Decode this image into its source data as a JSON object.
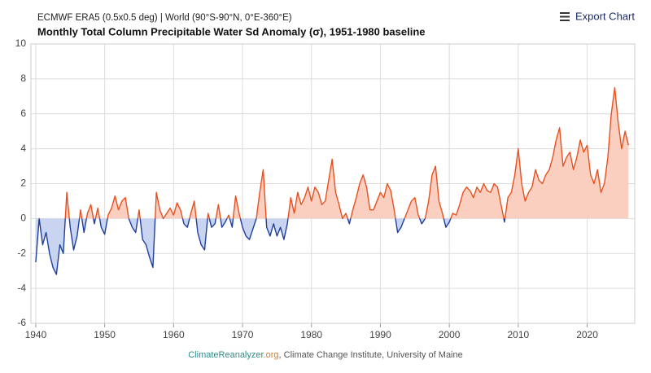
{
  "chart_data": {
    "type": "line",
    "subtitle": "ECMWF ERA5 (0.5x0.5 deg) | World (90°S-90°N, 0°E-360°E)",
    "title": "Monthly Total Column Precipitable Water Sd Anomaly (σ), 1951-1980 baseline",
    "export_button": "Export Chart",
    "credit": {
      "site": "ClimateReanalyzer",
      "tld": ".org",
      "text": ", Climate Change Institute, University of Maine"
    },
    "xlim": [
      1939.3,
      2026.9
    ],
    "ylim": [
      -6,
      10
    ],
    "xticks": [
      1940,
      1950,
      1960,
      1970,
      1980,
      1990,
      2000,
      2010,
      2020
    ],
    "yticks": [
      -6,
      -4,
      -2,
      0,
      2,
      4,
      6,
      8,
      10
    ],
    "grid": true,
    "positive_color": "#e8501f",
    "positive_fill": "#fbcfc0",
    "negative_color": "#1f3f9f",
    "negative_fill": "#c9d4f0",
    "x": [
      1940,
      1940.5,
      1941,
      1941.5,
      1942,
      1942.5,
      1943,
      1943.5,
      1944,
      1944.5,
      1945,
      1945.5,
      1946,
      1946.5,
      1947,
      1947.5,
      1948,
      1948.5,
      1949,
      1949.5,
      1950,
      1950.5,
      1951,
      1951.5,
      1952,
      1952.5,
      1953,
      1953.5,
      1954,
      1954.5,
      1955,
      1955.5,
      1956,
      1956.5,
      1957,
      1957.5,
      1958,
      1958.5,
      1959,
      1959.5,
      1960,
      1960.5,
      1961,
      1961.5,
      1962,
      1962.5,
      1963,
      1963.5,
      1964,
      1964.5,
      1965,
      1965.5,
      1966,
      1966.5,
      1967,
      1967.5,
      1968,
      1968.5,
      1969,
      1969.5,
      1970,
      1970.5,
      1971,
      1971.5,
      1972,
      1972.5,
      1973,
      1973.5,
      1974,
      1974.5,
      1975,
      1975.5,
      1976,
      1976.5,
      1977,
      1977.5,
      1978,
      1978.5,
      1979,
      1979.5,
      1980,
      1980.5,
      1981,
      1981.5,
      1982,
      1982.5,
      1983,
      1983.5,
      1984,
      1984.5,
      1985,
      1985.5,
      1986,
      1986.5,
      1987,
      1987.5,
      1988,
      1988.5,
      1989,
      1989.5,
      1990,
      1990.5,
      1991,
      1991.5,
      1992,
      1992.5,
      1993,
      1993.5,
      1994,
      1994.5,
      1995,
      1995.5,
      1996,
      1996.5,
      1997,
      1997.5,
      1998,
      1998.5,
      1999,
      1999.5,
      2000,
      2000.5,
      2001,
      2001.5,
      2002,
      2002.5,
      2003,
      2003.5,
      2004,
      2004.5,
      2005,
      2005.5,
      2006,
      2006.5,
      2007,
      2007.5,
      2008,
      2008.5,
      2009,
      2009.5,
      2010,
      2010.5,
      2011,
      2011.5,
      2012,
      2012.5,
      2013,
      2013.5,
      2014,
      2014.5,
      2015,
      2015.5,
      2016,
      2016.5,
      2017,
      2017.5,
      2018,
      2018.5,
      2019,
      2019.5,
      2020,
      2020.5,
      2021,
      2021.5,
      2022,
      2022.5,
      2023,
      2023.5,
      2024,
      2024.5,
      2025,
      2025.5,
      2026
    ],
    "values": [
      -2.5,
      0.0,
      -1.5,
      -0.8,
      -2.0,
      -2.8,
      -3.2,
      -1.5,
      -2.0,
      1.5,
      -0.5,
      -1.8,
      -1.0,
      0.5,
      -0.8,
      0.3,
      0.8,
      -0.3,
      0.6,
      -0.5,
      -0.9,
      0.2,
      0.6,
      1.3,
      0.5,
      1.0,
      1.2,
      0.0,
      -0.5,
      -0.8,
      0.5,
      -1.2,
      -1.5,
      -2.2,
      -2.8,
      1.5,
      0.5,
      0.0,
      0.3,
      0.6,
      0.2,
      0.9,
      0.5,
      -0.3,
      -0.5,
      0.3,
      1.0,
      -0.8,
      -1.5,
      -1.8,
      0.3,
      -0.5,
      -0.3,
      0.8,
      -0.5,
      -0.2,
      0.2,
      -0.5,
      1.3,
      0.3,
      -0.5,
      -1.0,
      -1.2,
      -0.6,
      0.0,
      1.5,
      2.8,
      -0.5,
      -1.0,
      -0.3,
      -1.0,
      -0.5,
      -1.2,
      -0.3,
      1.2,
      0.3,
      1.5,
      0.8,
      1.2,
      1.8,
      1.0,
      1.8,
      1.5,
      0.8,
      1.0,
      2.2,
      3.4,
      1.5,
      0.8,
      0.0,
      0.3,
      -0.3,
      0.5,
      1.2,
      2.0,
      2.5,
      1.8,
      0.5,
      0.5,
      1.0,
      1.5,
      1.2,
      2.0,
      1.6,
      0.5,
      -0.8,
      -0.5,
      0.0,
      0.5,
      1.0,
      1.2,
      0.2,
      -0.3,
      0.0,
      1.0,
      2.5,
      3.0,
      1.0,
      0.3,
      -0.5,
      -0.2,
      0.3,
      0.2,
      0.8,
      1.5,
      1.8,
      1.6,
      1.2,
      1.8,
      1.5,
      2.0,
      1.6,
      1.5,
      2.0,
      1.8,
      0.8,
      -0.2,
      1.2,
      1.5,
      2.5,
      4.0,
      2.0,
      1.0,
      1.5,
      1.8,
      2.8,
      2.2,
      2.0,
      2.5,
      2.8,
      3.5,
      4.5,
      5.2,
      3.0,
      3.5,
      3.8,
      2.8,
      3.5,
      4.5,
      3.8,
      4.2,
      2.5,
      2.0,
      2.8,
      1.5,
      2.0,
      3.5,
      6.0,
      7.5,
      5.5,
      4.0,
      5.0,
      4.2
    ]
  }
}
